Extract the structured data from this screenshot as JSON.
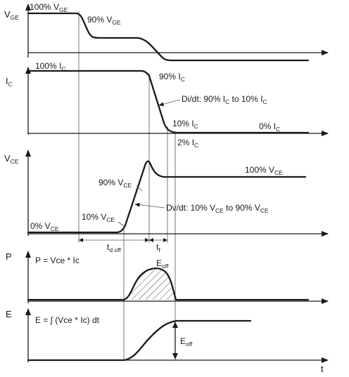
{
  "panels": {
    "vge": {
      "axis_label": {
        "main": "V",
        "sub": "GE"
      },
      "start_label": {
        "pre": "100% V",
        "sub": "GE"
      },
      "ninety_label": {
        "pre": "90% V",
        "sub": "GE"
      }
    },
    "ic": {
      "axis_label": {
        "main": "I",
        "sub": "C"
      },
      "start_label": {
        "pre": "100% I",
        "sub": "C"
      },
      "ninety_label": {
        "pre": "90% I",
        "sub": "C"
      },
      "didt_label": {
        "pre": "Di/dt: 90% I",
        "sub1": "C",
        "mid": " to 10% I",
        "sub2": "C"
      },
      "ten_label": {
        "pre": "10% I",
        "sub": "C"
      },
      "zero_label": {
        "pre": "0% I",
        "sub": "C"
      },
      "two_label": {
        "pre": "2% I",
        "sub": "C"
      }
    },
    "vce": {
      "axis_label": {
        "main": "V",
        "sub": "CE"
      },
      "hundred_label": {
        "pre": "100% V",
        "sub": "CE"
      },
      "ninety_label": {
        "pre": "90% V",
        "sub": "CE"
      },
      "ten_label": {
        "pre": "10% V",
        "sub": "CE"
      },
      "zero_label": {
        "pre": "0% V",
        "sub": "CE"
      },
      "dvdt_label": {
        "pre": "Dv/dt: 10% V",
        "sub1": "CE",
        "mid": " to 90% V",
        "sub2": "CE"
      }
    },
    "timing": {
      "tdoff_label": {
        "pre": "t",
        "sub": "d off"
      },
      "tf_label": {
        "pre": "t",
        "sub": "f"
      }
    },
    "power": {
      "axis_label": "P",
      "formula": "P = Vce * Ic",
      "eoff_label": {
        "pre": "E",
        "sub": "off"
      }
    },
    "energy": {
      "axis_label": "E",
      "formula": "E = ∫ (Vce * Ic) dt",
      "eoff_label": {
        "pre": "E",
        "sub": "off"
      },
      "time_label": "t"
    }
  }
}
